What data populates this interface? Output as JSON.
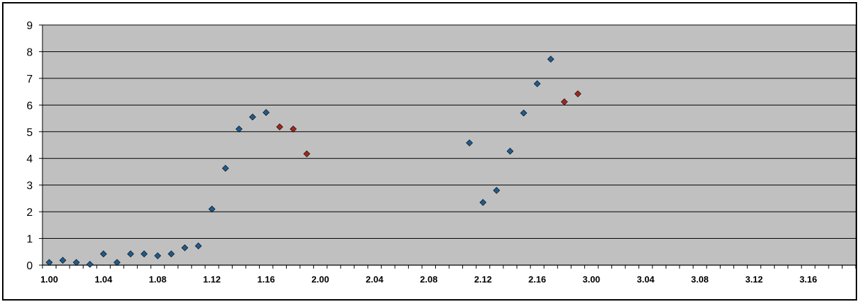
{
  "chart_data": {
    "type": "scatter",
    "title": "",
    "xlabel": "",
    "ylabel": "",
    "x_categories": [
      "1.00",
      "1.01",
      "1.02",
      "1.03",
      "1.04",
      "1.05",
      "1.06",
      "1.07",
      "1.08",
      "1.09",
      "1.10",
      "1.11",
      "1.12",
      "1.13",
      "1.14",
      "1.15",
      "1.16",
      "1.17",
      "1.18",
      "1.19",
      "2.00",
      "2.01",
      "2.02",
      "2.03",
      "2.04",
      "2.05",
      "2.06",
      "2.07",
      "2.08",
      "2.09",
      "2.10",
      "2.11",
      "2.12",
      "2.13",
      "2.14",
      "2.15",
      "2.16",
      "2.17",
      "2.18",
      "2.19",
      "3.00",
      "3.01",
      "3.02",
      "3.03",
      "3.04",
      "3.05",
      "3.06",
      "3.07",
      "3.08",
      "3.09",
      "3.10",
      "3.11",
      "3.12",
      "3.13",
      "3.14",
      "3.15",
      "3.16",
      "3.17",
      "3.18",
      "3.19"
    ],
    "x_tick_labels": [
      "1.00",
      "1.04",
      "1.08",
      "1.12",
      "1.16",
      "2.00",
      "2.04",
      "2.08",
      "2.12",
      "2.16",
      "3.00",
      "3.04",
      "3.08",
      "3.12",
      "3.16"
    ],
    "ylim": [
      0,
      9
    ],
    "y_ticks": [
      "0",
      "1",
      "2",
      "3",
      "4",
      "5",
      "6",
      "7",
      "8",
      "9"
    ],
    "grid": true,
    "legend": "none",
    "series": [
      {
        "color": "#1f5b8c",
        "points": [
          {
            "x": "1.00",
            "y": 0.1
          },
          {
            "x": "1.01",
            "y": 0.18
          },
          {
            "x": "1.02",
            "y": 0.1
          },
          {
            "x": "1.03",
            "y": 0.03
          },
          {
            "x": "1.04",
            "y": 0.42
          },
          {
            "x": "1.05",
            "y": 0.1
          },
          {
            "x": "1.06",
            "y": 0.42
          },
          {
            "x": "1.07",
            "y": 0.42
          },
          {
            "x": "1.08",
            "y": 0.35
          },
          {
            "x": "1.09",
            "y": 0.42
          },
          {
            "x": "1.10",
            "y": 0.65
          },
          {
            "x": "1.11",
            "y": 0.72
          },
          {
            "x": "1.12",
            "y": 2.1
          },
          {
            "x": "1.13",
            "y": 3.63
          },
          {
            "x": "1.14",
            "y": 5.1
          },
          {
            "x": "1.15",
            "y": 5.55
          },
          {
            "x": "1.16",
            "y": 5.72
          },
          {
            "x": "2.11",
            "y": 4.58
          },
          {
            "x": "2.12",
            "y": 2.35
          },
          {
            "x": "2.13",
            "y": 2.8
          },
          {
            "x": "2.14",
            "y": 4.27
          },
          {
            "x": "2.15",
            "y": 5.7
          },
          {
            "x": "2.16",
            "y": 6.8
          },
          {
            "x": "2.17",
            "y": 7.72
          }
        ]
      },
      {
        "color": "#a0281e",
        "points": [
          {
            "x": "1.17",
            "y": 5.18
          },
          {
            "x": "1.18",
            "y": 5.1
          },
          {
            "x": "1.19",
            "y": 4.17
          },
          {
            "x": "2.18",
            "y": 6.12
          },
          {
            "x": "2.19",
            "y": 6.42
          }
        ]
      }
    ]
  }
}
